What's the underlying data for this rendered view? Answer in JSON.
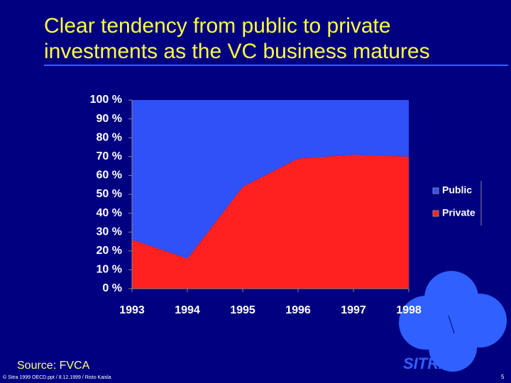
{
  "title": [
    "Clear tendency from public to private",
    "investments as the VC business matures"
  ],
  "chart_data": {
    "type": "stacked_area",
    "x": [
      "1993",
      "1994",
      "1995",
      "1996",
      "1997",
      "1998"
    ],
    "series": [
      {
        "name": "Public",
        "color": "#3050f8",
        "values": [
          74,
          84,
          46,
          31,
          29,
          30
        ]
      },
      {
        "name": "Private",
        "color": "#ff2020",
        "values": [
          26,
          16,
          54,
          69,
          71,
          70
        ]
      }
    ],
    "ylim": [
      0,
      100
    ],
    "yticks": [
      {
        "value": 0,
        "label": "0 %"
      },
      {
        "value": 10,
        "label": "10 %"
      },
      {
        "value": 20,
        "label": "20 %"
      },
      {
        "value": 30,
        "label": "30 %"
      },
      {
        "value": 40,
        "label": "40 %"
      },
      {
        "value": 50,
        "label": "50 %"
      },
      {
        "value": 60,
        "label": "60 %"
      },
      {
        "value": 70,
        "label": "70 %"
      },
      {
        "value": 80,
        "label": "80 %"
      },
      {
        "value": 90,
        "label": "90 %"
      },
      {
        "value": 100,
        "label": "100 %"
      }
    ],
    "legend": "right"
  },
  "source": "Source: FVCA",
  "footer": "© Sitra 1999 OECD.ppt / 8.12.1999 / Risto Kaisla",
  "page_number": "5",
  "logo": "SITRA"
}
